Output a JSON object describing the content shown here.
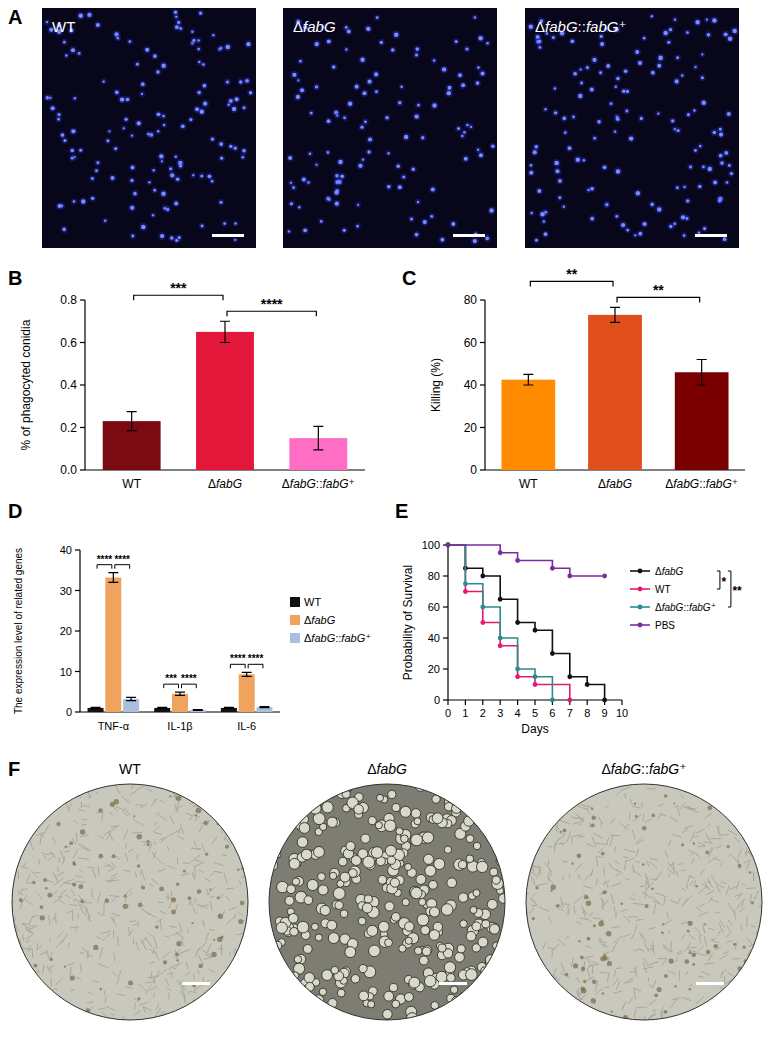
{
  "chart_data": [
    {
      "panel": "B",
      "type": "bar",
      "categories": [
        "WT",
        "ΔfabG",
        "ΔfabG::fabG⁺"
      ],
      "values": [
        0.23,
        0.65,
        0.15
      ],
      "errors": [
        0.045,
        0.05,
        0.055
      ],
      "colors": [
        "#7b0a12",
        "#e3173a",
        "#ff6ec4"
      ],
      "y_label": "% of phagocyted conidia",
      "ylim": [
        0,
        0.8
      ],
      "yticks": [
        {
          "value": 0,
          "label": "0.0"
        },
        {
          "value": 0.2,
          "label": "0.2"
        },
        {
          "value": 0.4,
          "label": "0.4"
        },
        {
          "value": 0.6,
          "label": "0.6"
        },
        {
          "value": 0.8,
          "label": "0.8"
        }
      ],
      "annotations": [
        {
          "text": "***",
          "from": 0,
          "to": 1
        },
        {
          "text": "****",
          "from": 1,
          "to": 2
        }
      ]
    },
    {
      "panel": "C",
      "type": "bar",
      "categories": [
        "WT",
        "ΔfabG",
        "ΔfabG::fabG⁺"
      ],
      "values": [
        42.5,
        73,
        46
      ],
      "errors": [
        2.5,
        3.5,
        6
      ],
      "colors": [
        "#ff8c00",
        "#e04e1b",
        "#7a0000"
      ],
      "y_label": "Killing (%)",
      "ylim": [
        0,
        80
      ],
      "yticks": [
        0,
        20,
        40,
        60,
        80
      ],
      "annotations": [
        {
          "text": "**",
          "from": 0,
          "to": 1
        },
        {
          "text": "**",
          "from": 1,
          "to": 2
        }
      ]
    },
    {
      "panel": "D",
      "type": "bar",
      "categories": [
        "TNF-α",
        "IL-1β",
        "IL-6"
      ],
      "series": [
        {
          "name": "WT",
          "color": "#111111",
          "values": [
            1,
            1,
            1
          ],
          "errors": [
            0.15,
            0.15,
            0.12
          ]
        },
        {
          "name": "ΔfabG",
          "color": "#f0a35e",
          "values": [
            33.2,
            4.5,
            9.3
          ],
          "errors": [
            1.2,
            0.4,
            0.5
          ]
        },
        {
          "name": "ΔfabG::fabG⁺",
          "color": "#a9c0dc",
          "values": [
            3.2,
            0.5,
            1.2
          ],
          "errors": [
            0.4,
            0.08,
            0.15
          ]
        }
      ],
      "y_label": "The expression level of related genes",
      "ylim": [
        0,
        40
      ],
      "yticks": [
        0,
        10,
        20,
        30,
        40
      ],
      "legend": "right",
      "annotations": [
        {
          "category": 0,
          "text": "****",
          "from": 0,
          "to": 1
        },
        {
          "category": 0,
          "text": "****",
          "from": 1,
          "to": 2
        },
        {
          "category": 1,
          "text": "***",
          "from": 0,
          "to": 1
        },
        {
          "category": 1,
          "text": "****",
          "from": 1,
          "to": 2
        },
        {
          "category": 2,
          "text": "****",
          "from": 0,
          "to": 1
        },
        {
          "category": 2,
          "text": "****",
          "from": 1,
          "to": 2
        }
      ]
    },
    {
      "panel": "E",
      "type": "line",
      "line_style": "step",
      "marker": "circle",
      "series": [
        {
          "name": "ΔfabG",
          "color": "#111111",
          "x": [
            0,
            1,
            2,
            3,
            4,
            5,
            6,
            7,
            8,
            9
          ],
          "values": [
            100,
            85,
            80,
            65,
            50,
            45,
            30,
            15,
            10,
            0
          ]
        },
        {
          "name": "WT",
          "color": "#e6196e",
          "x": [
            0,
            1,
            2,
            3,
            4,
            5,
            7
          ],
          "values": [
            100,
            70,
            50,
            35,
            15,
            10,
            0
          ]
        },
        {
          "name": "ΔfabG::fabG⁺",
          "color": "#2a8c8c",
          "x": [
            0,
            1,
            2,
            3,
            4,
            5,
            6
          ],
          "values": [
            100,
            75,
            60,
            40,
            20,
            15,
            0
          ]
        },
        {
          "name": "PBS",
          "color": "#7b2d9c",
          "x": [
            0,
            3,
            4,
            6,
            7,
            9
          ],
          "values": [
            100,
            95,
            90,
            85,
            80,
            80
          ]
        }
      ],
      "x_label": "Days",
      "y_label": "Probability of Survival",
      "xlim": [
        0,
        10
      ],
      "xticks": [
        0,
        1,
        2,
        3,
        4,
        5,
        6,
        7,
        8,
        9,
        10
      ],
      "ylim": [
        0,
        100
      ],
      "yticks": [
        0,
        20,
        40,
        60,
        80,
        100
      ],
      "legend": "right",
      "annotations": [
        {
          "text": "*",
          "from": 0,
          "to": 1
        },
        {
          "text": "**",
          "from": 0,
          "to": 2
        }
      ]
    }
  ],
  "micrographs": [
    {
      "panel": "A",
      "labels": [
        "WT",
        "ΔfabG",
        "ΔfabG::fabG⁺"
      ]
    },
    {
      "panel": "F",
      "labels": [
        "WT",
        "ΔfabG",
        "ΔfabG::fabG⁺"
      ]
    }
  ]
}
